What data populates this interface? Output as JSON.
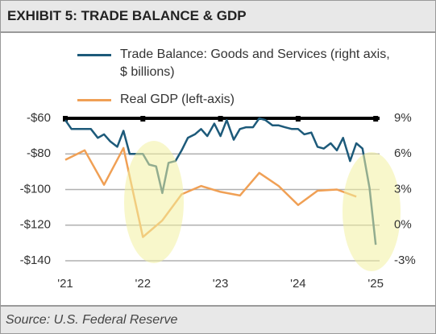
{
  "chart_data": {
    "type": "line",
    "title": "EXHIBIT 5: TRADE BALANCE & GDP",
    "source": "Source: U.S. Federal Reserve",
    "xlim": [
      2021,
      2025.05
    ],
    "xticks": [
      {
        "value": 2021,
        "label": "'21"
      },
      {
        "value": 2022,
        "label": "'22"
      },
      {
        "value": 2023,
        "label": "'23"
      },
      {
        "value": 2024,
        "label": "'24"
      },
      {
        "value": 2025,
        "label": "'25"
      }
    ],
    "ylim": [
      -140,
      -60
    ],
    "yticks": [
      {
        "value": -60,
        "label": "-$60"
      },
      {
        "value": -80,
        "label": "-$80"
      },
      {
        "value": -100,
        "label": "-$100"
      },
      {
        "value": -120,
        "label": "-$120"
      },
      {
        "value": -140,
        "label": "-$140"
      }
    ],
    "y2lim": [
      -3,
      9
    ],
    "y2ticks": [
      {
        "value": 9,
        "label": "9%"
      },
      {
        "value": 6,
        "label": "6%"
      },
      {
        "value": 3,
        "label": "3%"
      },
      {
        "value": 0,
        "label": "0%"
      },
      {
        "value": -3,
        "label": "-3%"
      }
    ],
    "grid": true,
    "series": [
      {
        "name": "Trade Balance: Goods and Services (right axis, $ billions)",
        "color": "#1d5a7a",
        "x": [
          2021,
          2021.08,
          2021.17,
          2021.25,
          2021.33,
          2021.42,
          2021.5,
          2021.58,
          2021.67,
          2021.75,
          2021.83,
          2021.92,
          2022,
          2022.08,
          2022.17,
          2022.25,
          2022.33,
          2022.42,
          2022.5,
          2022.58,
          2022.67,
          2022.75,
          2022.83,
          2022.92,
          2023,
          2023.08,
          2023.17,
          2023.25,
          2023.33,
          2023.42,
          2023.5,
          2023.58,
          2023.67,
          2023.75,
          2023.83,
          2023.92,
          2024,
          2024.08,
          2024.17,
          2024.25,
          2024.33,
          2024.42,
          2024.5,
          2024.58,
          2024.67,
          2024.75,
          2024.83,
          2024.92,
          2025
        ],
        "values": [
          -61,
          -66,
          -66,
          -66,
          -66,
          -71,
          -69,
          -73,
          -76,
          -67,
          -80,
          -80,
          -80,
          -86,
          -87,
          -102,
          -85,
          -84,
          -78,
          -71,
          -69,
          -66,
          -70,
          -63,
          -70,
          -61,
          -72,
          -66,
          -65,
          -65,
          -60,
          -61,
          -64,
          -64,
          -65,
          -66,
          -66,
          -69,
          -68,
          -76,
          -77,
          -74,
          -78,
          -71,
          -84,
          -74,
          -77,
          -99,
          -131
        ]
      },
      {
        "name": "Real GDP (left-axis)",
        "color": "#f0a055",
        "axis": "y2",
        "x": [
          2021,
          2021.25,
          2021.5,
          2021.75,
          2022,
          2022.25,
          2022.5,
          2022.75,
          2023,
          2023.25,
          2023.5,
          2023.75,
          2024,
          2024.25,
          2024.5,
          2024.75
        ],
        "values": [
          5.5,
          6.3,
          3.4,
          6.5,
          -1.0,
          0.4,
          2.6,
          3.3,
          2.8,
          2.5,
          4.4,
          3.3,
          1.7,
          2.9,
          3.0,
          2.4
        ]
      }
    ]
  }
}
